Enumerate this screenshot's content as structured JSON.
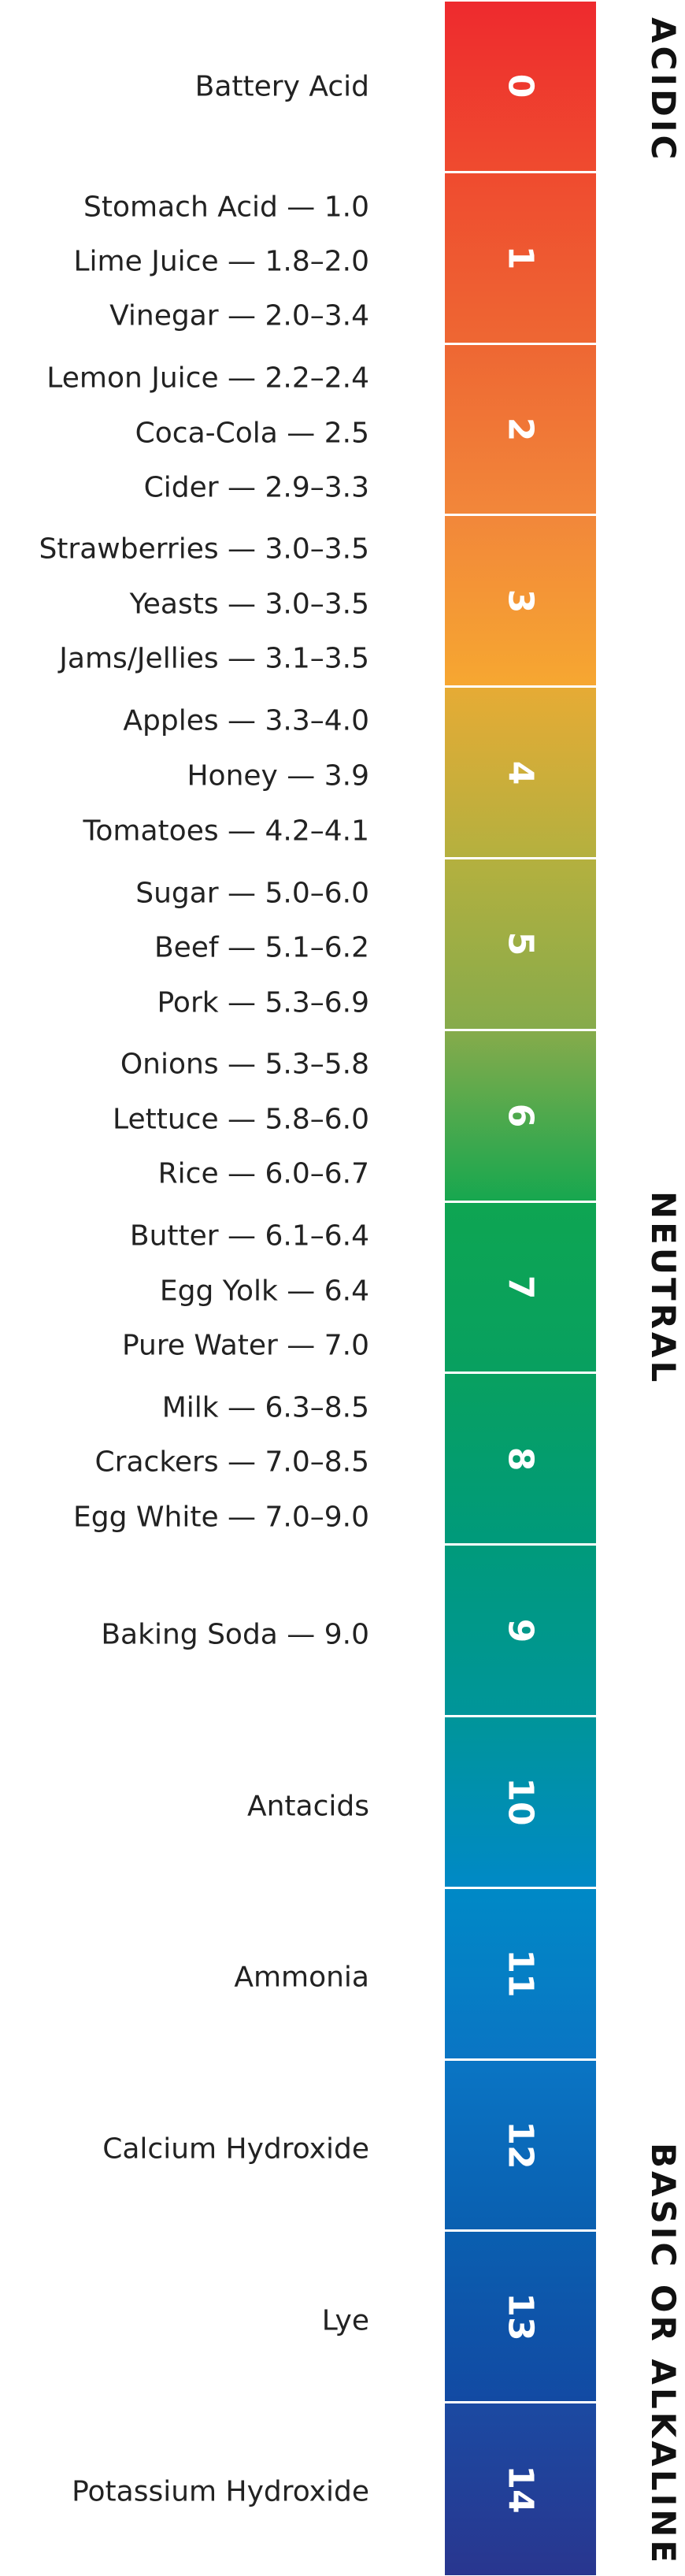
{
  "scale": {
    "segments": [
      {
        "label": "0",
        "top": "#ee2a2e",
        "bottom": "#ef4b2f"
      },
      {
        "label": "1",
        "top": "#ef4b2f",
        "bottom": "#ee6733"
      },
      {
        "label": "2",
        "top": "#ee6733",
        "bottom": "#f2873a"
      },
      {
        "label": "3",
        "top": "#f2873a",
        "bottom": "#f6a731"
      },
      {
        "label": "4",
        "top": "#e6ab35",
        "bottom": "#b4b03f"
      },
      {
        "label": "5",
        "top": "#b4b03f",
        "bottom": "#86ab4b"
      },
      {
        "label": "6",
        "top": "#86ab4b",
        "bottom": "#17a74f"
      },
      {
        "label": "7",
        "top": "#0ea552",
        "bottom": "#08a060"
      },
      {
        "label": "8",
        "top": "#08a060",
        "bottom": "#009a7b"
      },
      {
        "label": "9",
        "top": "#009a7b",
        "bottom": "#00959a"
      },
      {
        "label": "10",
        "top": "#00959a",
        "bottom": "#0089c6"
      },
      {
        "label": "11",
        "top": "#0089c6",
        "bottom": "#0a75c4"
      },
      {
        "label": "12",
        "top": "#0a75c4",
        "bottom": "#0a5fb0"
      },
      {
        "label": "13",
        "top": "#0a5fb0",
        "bottom": "#124aa3"
      },
      {
        "label": "14",
        "top": "#1b4aa2",
        "bottom": "#29368f"
      }
    ]
  },
  "side_labels": {
    "acidic": "ACIDIC",
    "neutral": "NEUTRAL",
    "basic": "BASIC OR ALKALINE"
  },
  "items": [
    {
      "text": "Battery Acid"
    },
    {
      "text": "Stomach Acid — 1.0"
    },
    {
      "text": "Lime Juice — 1.8–2.0"
    },
    {
      "text": "Vinegar — 2.0–3.4"
    },
    {
      "text": "Lemon Juice — 2.2–2.4"
    },
    {
      "text": "Coca-Cola — 2.5"
    },
    {
      "text": "Cider — 2.9–3.3"
    },
    {
      "text": "Strawberries — 3.0–3.5"
    },
    {
      "text": "Yeasts — 3.0–3.5"
    },
    {
      "text": "Jams/Jellies — 3.1–3.5"
    },
    {
      "text": "Apples — 3.3–4.0"
    },
    {
      "text": "Honey — 3.9"
    },
    {
      "text": "Tomatoes — 4.2–4.1"
    },
    {
      "text": "Sugar — 5.0–6.0"
    },
    {
      "text": "Beef — 5.1–6.2"
    },
    {
      "text": "Pork — 5.3–6.9"
    },
    {
      "text": "Onions — 5.3–5.8"
    },
    {
      "text": "Lettuce — 5.8–6.0"
    },
    {
      "text": "Rice — 6.0–6.7"
    },
    {
      "text": "Butter  — 6.1–6.4"
    },
    {
      "text": "Egg Yolk — 6.4"
    },
    {
      "text": "Pure Water — 7.0"
    },
    {
      "text": "Milk — 6.3–8.5"
    },
    {
      "text": "Crackers — 7.0–8.5"
    },
    {
      "text": "Egg White — 7.0–9.0"
    },
    {
      "text": "Baking Soda — 9.0"
    },
    {
      "text": "Antacids"
    },
    {
      "text": "Ammonia"
    },
    {
      "text": "Calcium Hydroxide"
    },
    {
      "text": "Lye"
    },
    {
      "text": "Potassium Hydroxide"
    }
  ]
}
